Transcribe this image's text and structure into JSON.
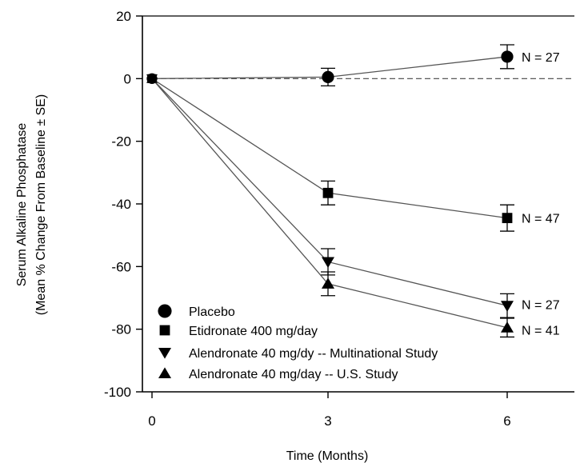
{
  "chart_data": {
    "type": "line",
    "title": "",
    "xlabel": "Time (Months)",
    "ylabel_lines": [
      "Serum Alkaline Phosphatase",
      "(Mean % Change From Baseline ± SE)"
    ],
    "x": [
      0,
      3,
      6
    ],
    "x_ticks": [
      0,
      3,
      6
    ],
    "y_ticks": [
      20,
      0,
      -20,
      -40,
      -60,
      -80,
      -100
    ],
    "ylim": [
      -100,
      20
    ],
    "reference_line": 0,
    "series": [
      {
        "name": "Placebo",
        "marker": "circle",
        "values": [
          0,
          0.5,
          7
        ],
        "errors": [
          0,
          2.8,
          3.8
        ],
        "n_label": "N = 27"
      },
      {
        "name": "Etidronate 400 mg/day",
        "marker": "square",
        "values": [
          0,
          -36.5,
          -44.5
        ],
        "errors": [
          0,
          3.8,
          4.2
        ],
        "n_label": "N = 47"
      },
      {
        "name": "Alendronate 40 mg/dy -- Multinational Study",
        "marker": "triangle-down",
        "values": [
          0,
          -58.5,
          -72.5
        ],
        "errors": [
          0,
          4.2,
          3.8
        ],
        "n_label": "N = 27"
      },
      {
        "name": "Alendronate 40 mg/day -- U.S. Study",
        "marker": "triangle-up",
        "values": [
          0,
          -65.5,
          -79.5
        ],
        "errors": [
          0,
          3.8,
          3.0
        ],
        "n_label": "N = 41"
      }
    ],
    "legend_placement": "bottom-left",
    "colors": {
      "line": "#555555",
      "marker": "#000000",
      "reference": "#444444"
    }
  }
}
